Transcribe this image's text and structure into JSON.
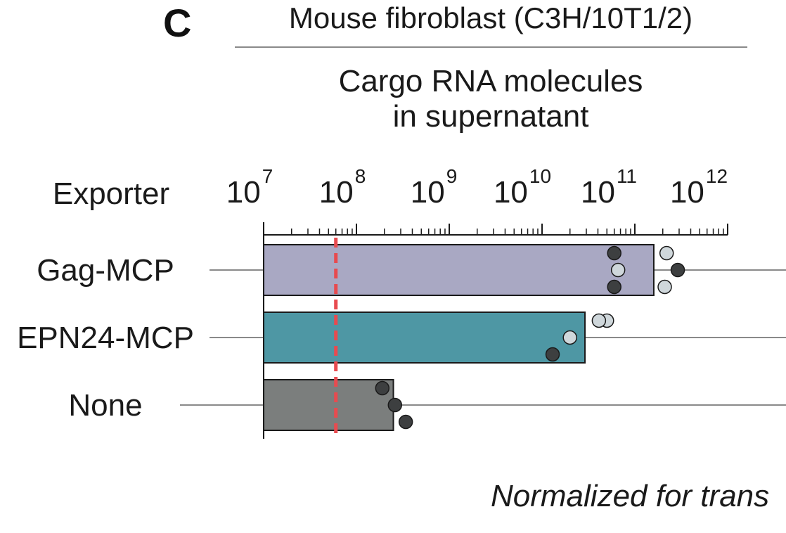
{
  "panel_label": "C",
  "super_title": "Mouse fibroblast (C3H/10T1/2)",
  "footnote": "Normalized for trans",
  "chart_data": {
    "type": "bar",
    "orientation": "horizontal",
    "title_lines": [
      "Cargo RNA molecules",
      "in supernatant"
    ],
    "category_axis_label": "Exporter",
    "xscale": "log",
    "xlim": [
      10000000,
      1000000000000
    ],
    "tick_labels": [
      {
        "base": "10",
        "exp": "7"
      },
      {
        "base": "10",
        "exp": "8"
      },
      {
        "base": "10",
        "exp": "9"
      },
      {
        "base": "10",
        "exp": "10"
      },
      {
        "base": "10",
        "exp": "11"
      },
      {
        "base": "10",
        "exp": "12"
      }
    ],
    "categories": [
      "Gag-MCP",
      "EPN24-MCP",
      "None"
    ],
    "values": [
      160000000000,
      29000000000,
      250000000
    ],
    "bar_colors": [
      "#a9a8c3",
      "#4e97a4",
      "#7b7e7d"
    ],
    "threshold_line": {
      "value": 60000000,
      "color": "#e84a4f",
      "style": "dashed"
    },
    "points": [
      [
        {
          "value": 60000000000,
          "color": "dark"
        },
        {
          "value": 66000000000,
          "color": "light"
        },
        {
          "value": 60000000000,
          "color": "dark"
        },
        {
          "value": 220000000000,
          "color": "light"
        },
        {
          "value": 290000000000,
          "color": "dark"
        },
        {
          "value": 210000000000,
          "color": "light"
        }
      ],
      [
        {
          "value": 50000000000,
          "color": "light"
        },
        {
          "value": 20000000000,
          "color": "light"
        },
        {
          "value": 13000000000,
          "color": "dark"
        },
        {
          "value": 41000000000,
          "color": "light"
        }
      ],
      [
        {
          "value": 190000000,
          "color": "dark"
        },
        {
          "value": 260000000,
          "color": "dark"
        },
        {
          "value": 340000000,
          "color": "dark"
        }
      ]
    ],
    "point_colors": {
      "dark": "#3d3f40",
      "light": "#cfd7db"
    },
    "grid": false
  }
}
